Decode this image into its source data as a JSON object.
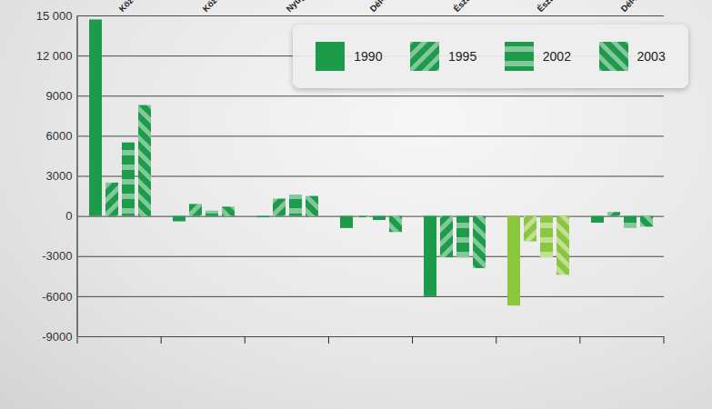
{
  "chart_data": {
    "type": "bar",
    "categories": [
      "Közép-Magyarország",
      "Közép-Dunántúl",
      "Nyugat-Dunántúl",
      "Dél-Dunántúl",
      "Észak-Magyarország",
      "Észak-Alföld",
      "Dél-Alföld"
    ],
    "series": [
      {
        "name": "1990",
        "color": "#1e9a4b",
        "colors": [
          "#1e9a4b",
          "#1e9a4b",
          "#1e9a4b",
          "#1e9a4b",
          "#1e9a4b",
          "#8cc63f",
          "#1e9a4b"
        ],
        "values": [
          14700,
          -400,
          -100,
          -900,
          -6000,
          -6700,
          -500
        ]
      },
      {
        "name": "1995",
        "color": "#1e9a4b",
        "colors": [
          "#1e9a4b",
          "#1e9a4b",
          "#1e9a4b",
          "#1e9a4b",
          "#1e9a4b",
          "#8cc63f",
          "#1e9a4b"
        ],
        "values": [
          2500,
          900,
          1300,
          -100,
          -3100,
          -1900,
          300
        ]
      },
      {
        "name": "2002",
        "color": "#1e9a4b",
        "colors": [
          "#1e9a4b",
          "#1e9a4b",
          "#1e9a4b",
          "#1e9a4b",
          "#1e9a4b",
          "#8cc63f",
          "#1e9a4b"
        ],
        "values": [
          5500,
          400,
          1600,
          -300,
          -3100,
          -3100,
          -900
        ]
      },
      {
        "name": "2003",
        "color": "#1e9a4b",
        "colors": [
          "#1e9a4b",
          "#1e9a4b",
          "#1e9a4b",
          "#1e9a4b",
          "#1e9a4b",
          "#8cc63f",
          "#1e9a4b"
        ],
        "values": [
          8300,
          700,
          1500,
          -1200,
          -3900,
          -4400,
          -800
        ]
      }
    ],
    "ylim": [
      -9000,
      15000
    ],
    "yticks": [
      -9000,
      -6000,
      -3000,
      0,
      3000,
      6000,
      9000,
      {
        "value": 12000,
        "label": "12 000"
      },
      {
        "value": 15000,
        "label": "15 000"
      }
    ],
    "grid": true,
    "legend": "top-right"
  }
}
